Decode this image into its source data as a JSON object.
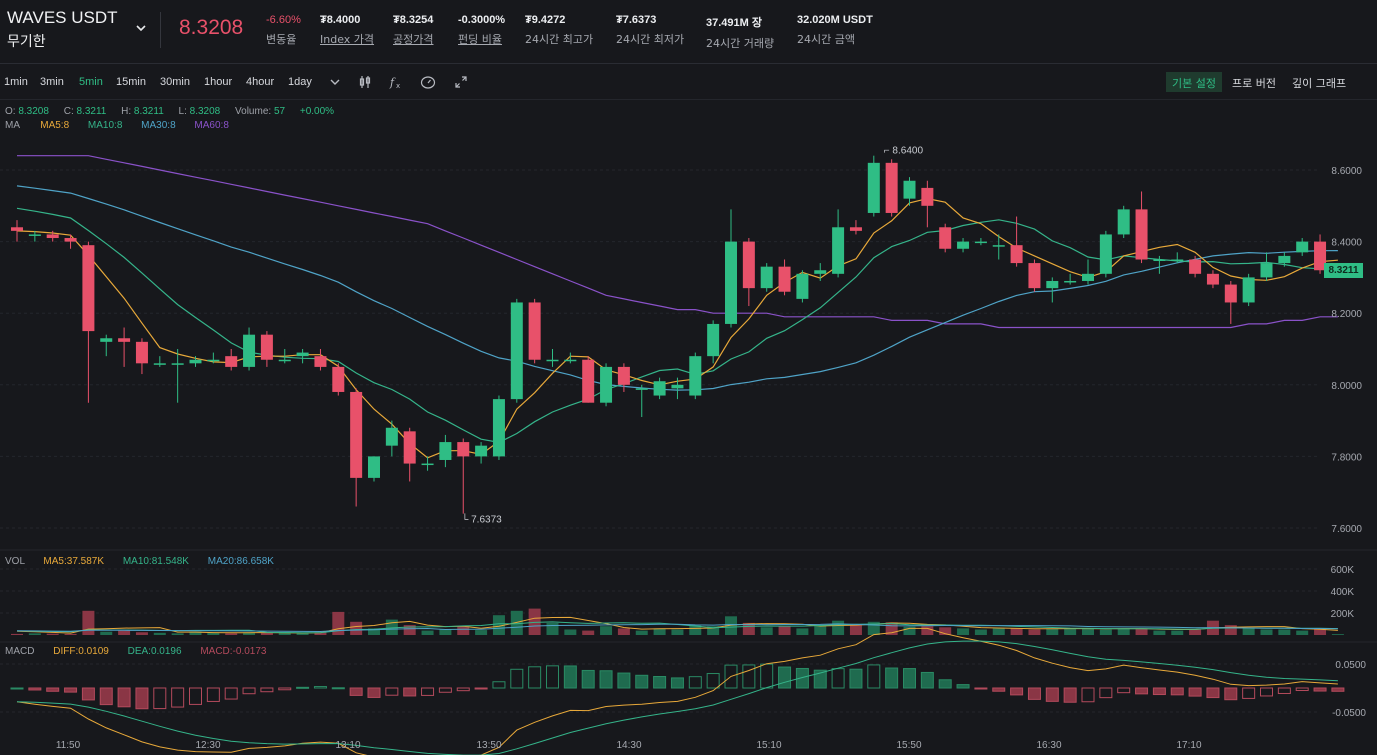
{
  "header": {
    "symbol": "WAVES USDT",
    "contract_type": "무기한",
    "last_price": "8.3208",
    "change_pct": "-6.60%",
    "change_label": "변동율",
    "index_price": "₮8.4000",
    "index_label": "Index 가격",
    "fair_price": "₮8.3254",
    "fair_label": "공정가격",
    "funding_rate": "-0.3000%",
    "funding_label": "펀딩 비율",
    "high_24h": "₮9.4272",
    "high_label": "24시간 최고가",
    "low_24h": "₮7.6373",
    "low_label": "24시간 최저가",
    "volume_24h": "37.491M 장",
    "volume_label": "24시간 거래량",
    "turnover_24h": "32.020M USDT",
    "turnover_label": "24시간 금액"
  },
  "toolbar": {
    "timeframes": [
      "1min",
      "3min",
      "5min",
      "15min",
      "30min",
      "1hour",
      "4hour",
      "1day"
    ],
    "active_timeframe": "5min",
    "tools": [
      "chevron-down-icon",
      "candlestick-icon",
      "fx-icon",
      "gauge-icon",
      "expand-icon"
    ],
    "views": [
      "기본 설정",
      "프로 버전",
      "깊이 그래프"
    ],
    "active_view": "기본 설정"
  },
  "ohlc": {
    "o_label": "O:",
    "o": "8.3208",
    "c_label": "C:",
    "c": "8.3211",
    "h_label": "H:",
    "h": "8.3211",
    "l_label": "L:",
    "l": "8.3208",
    "vol_label": "Volume:",
    "vol": "57",
    "chg": "+0.00%"
  },
  "ma_legend": {
    "label": "MA",
    "ma5": "MA5:8",
    "ma10": "MA10:8",
    "ma30": "MA30:8",
    "ma60": "MA60:8"
  },
  "vol_legend": {
    "label": "VOL",
    "ma5": "MA5:37.587K",
    "ma10": "MA10:81.548K",
    "ma20": "MA20:86.658K"
  },
  "macd_legend": {
    "label": "MACD",
    "diff": "DIFF:0.0109",
    "dea": "DEA:0.0196",
    "macd": "MACD:-0.0173"
  },
  "colors": {
    "up": "#2fbd85",
    "down": "#e8516a",
    "ma5": "#e8a93a",
    "ma10": "#35b48a",
    "ma30": "#4fa3c7",
    "ma60": "#8a52c9",
    "diff": "#e8a93a",
    "dea": "#35b48a"
  },
  "chart_data": {
    "type": "candlestick",
    "x_ticks": [
      "11:50",
      "12:30",
      "13:10",
      "13:50",
      "14:30",
      "15:10",
      "15:50",
      "16:30",
      "17:10"
    ],
    "y_ticks": [
      "8.6000",
      "8.4000",
      "8.2000",
      "8.0000",
      "7.8000",
      "7.6000"
    ],
    "y_range": [
      7.6,
      8.6
    ],
    "max_marker": "8.6400",
    "min_marker": "7.6373",
    "last_price_label": "8.3211",
    "vol_ticks": [
      "600K",
      "400K",
      "200K"
    ],
    "macd_ticks": [
      "0.0500",
      "-0.0500"
    ],
    "candles": [
      [
        8.44,
        8.43,
        8.46,
        8.4
      ],
      [
        8.42,
        8.42,
        8.43,
        8.4
      ],
      [
        8.42,
        8.41,
        8.43,
        8.4
      ],
      [
        8.41,
        8.4,
        8.42,
        8.38
      ],
      [
        8.39,
        8.15,
        8.4,
        7.95
      ],
      [
        8.12,
        8.13,
        8.14,
        8.08
      ],
      [
        8.13,
        8.12,
        8.16,
        8.05
      ],
      [
        8.12,
        8.06,
        8.13,
        8.03
      ],
      [
        8.06,
        8.06,
        8.08,
        8.05
      ],
      [
        8.06,
        8.06,
        8.1,
        7.95
      ],
      [
        8.06,
        8.07,
        8.08,
        8.05
      ],
      [
        8.07,
        8.07,
        8.09,
        8.06
      ],
      [
        8.08,
        8.05,
        8.1,
        8.04
      ],
      [
        8.05,
        8.14,
        8.16,
        8.04
      ],
      [
        8.14,
        8.07,
        8.15,
        8.05
      ],
      [
        8.07,
        8.07,
        8.1,
        8.06
      ],
      [
        8.08,
        8.09,
        8.1,
        8.06
      ],
      [
        8.08,
        8.05,
        8.1,
        8.04
      ],
      [
        8.05,
        7.98,
        8.06,
        7.97
      ],
      [
        7.98,
        7.74,
        7.99,
        7.66
      ],
      [
        7.74,
        7.8,
        7.8,
        7.73
      ],
      [
        7.83,
        7.88,
        7.9,
        7.8
      ],
      [
        7.87,
        7.78,
        7.88,
        7.73
      ],
      [
        7.78,
        7.78,
        7.8,
        7.76
      ],
      [
        7.79,
        7.84,
        7.86,
        7.77
      ],
      [
        7.84,
        7.8,
        7.85,
        7.64
      ],
      [
        7.8,
        7.83,
        7.84,
        7.78
      ],
      [
        7.8,
        7.96,
        7.97,
        7.79
      ],
      [
        7.96,
        8.23,
        8.24,
        7.95
      ],
      [
        8.23,
        8.07,
        8.24,
        8.06
      ],
      [
        8.07,
        8.07,
        8.1,
        8.05
      ],
      [
        8.07,
        8.07,
        8.09,
        8.06
      ],
      [
        8.07,
        7.95,
        8.08,
        7.95
      ],
      [
        7.95,
        8.05,
        8.06,
        7.94
      ],
      [
        8.05,
        8.0,
        8.06,
        7.98
      ],
      [
        7.99,
        7.99,
        8.0,
        7.91
      ],
      [
        7.97,
        8.01,
        8.02,
        7.96
      ],
      [
        7.99,
        8.0,
        8.02,
        7.96
      ],
      [
        7.97,
        8.08,
        8.09,
        7.96
      ],
      [
        8.08,
        8.17,
        8.18,
        8.06
      ],
      [
        8.17,
        8.4,
        8.49,
        8.16
      ],
      [
        8.4,
        8.27,
        8.41,
        8.22
      ],
      [
        8.27,
        8.33,
        8.34,
        8.26
      ],
      [
        8.33,
        8.26,
        8.35,
        8.25
      ],
      [
        8.24,
        8.31,
        8.32,
        8.23
      ],
      [
        8.31,
        8.32,
        8.34,
        8.29
      ],
      [
        8.31,
        8.44,
        8.49,
        8.3
      ],
      [
        8.44,
        8.43,
        8.46,
        8.42
      ],
      [
        8.48,
        8.62,
        8.64,
        8.47
      ],
      [
        8.62,
        8.48,
        8.63,
        8.47
      ],
      [
        8.52,
        8.57,
        8.58,
        8.5
      ],
      [
        8.55,
        8.5,
        8.57,
        8.44
      ],
      [
        8.44,
        8.38,
        8.45,
        8.37
      ],
      [
        8.38,
        8.4,
        8.41,
        8.37
      ],
      [
        8.4,
        8.4,
        8.41,
        8.39
      ],
      [
        8.39,
        8.39,
        8.42,
        8.35
      ],
      [
        8.39,
        8.34,
        8.47,
        8.33
      ],
      [
        8.34,
        8.27,
        8.35,
        8.26
      ],
      [
        8.27,
        8.29,
        8.3,
        8.23
      ],
      [
        8.29,
        8.29,
        8.31,
        8.28
      ],
      [
        8.29,
        8.31,
        8.35,
        8.28
      ],
      [
        8.31,
        8.42,
        8.43,
        8.3
      ],
      [
        8.42,
        8.49,
        8.5,
        8.41
      ],
      [
        8.49,
        8.35,
        8.54,
        8.34
      ],
      [
        8.35,
        8.35,
        8.36,
        8.31
      ],
      [
        8.35,
        8.35,
        8.37,
        8.34
      ],
      [
        8.35,
        8.31,
        8.36,
        8.3
      ],
      [
        8.31,
        8.28,
        8.32,
        8.27
      ],
      [
        8.28,
        8.23,
        8.29,
        8.17
      ],
      [
        8.23,
        8.3,
        8.31,
        8.22
      ],
      [
        8.3,
        8.34,
        8.37,
        8.29
      ],
      [
        8.34,
        8.36,
        8.37,
        8.33
      ],
      [
        8.37,
        8.4,
        8.41,
        8.36
      ],
      [
        8.4,
        8.32,
        8.42,
        8.31
      ],
      [
        8.32,
        8.32,
        8.33,
        8.32
      ]
    ],
    "volumes": [
      10,
      15,
      12,
      10,
      220,
      30,
      40,
      25,
      20,
      15,
      30,
      20,
      15,
      25,
      20,
      18,
      15,
      25,
      210,
      120,
      60,
      140,
      90,
      40,
      50,
      80,
      45,
      180,
      220,
      240,
      110,
      50,
      40,
      80,
      60,
      40,
      60,
      50,
      90,
      80,
      170,
      110,
      70,
      80,
      60,
      90,
      130,
      90,
      120,
      115,
      75,
      80,
      70,
      60,
      50,
      60,
      60,
      50,
      60,
      60,
      60,
      50,
      60,
      60,
      40,
      40,
      50,
      130,
      90,
      60,
      50,
      50,
      40,
      60,
      8
    ],
    "ma60": [
      8.64,
      8.64,
      8.64,
      8.64,
      8.64,
      8.63,
      8.62,
      8.61,
      8.6,
      8.59,
      8.58,
      8.57,
      8.56,
      8.55,
      8.54,
      8.53,
      8.52,
      8.51,
      8.5,
      8.49,
      8.48,
      8.47,
      8.46,
      8.45,
      8.43,
      8.41,
      8.39,
      8.37,
      8.35,
      8.33,
      8.31,
      8.29,
      8.27,
      8.25,
      8.24,
      8.23,
      8.22,
      8.21,
      8.21,
      8.2,
      8.2,
      8.2,
      8.2,
      8.19,
      8.19,
      8.19,
      8.19,
      8.19,
      8.19,
      8.18,
      8.18,
      8.18,
      8.17,
      8.17,
      8.17,
      8.16,
      8.16,
      8.16,
      8.16,
      8.16,
      8.16,
      8.16,
      8.16,
      8.16,
      8.16,
      8.16,
      8.16,
      8.16,
      8.16,
      8.17,
      8.17,
      8.18,
      8.18,
      8.19,
      8.19
    ]
  }
}
